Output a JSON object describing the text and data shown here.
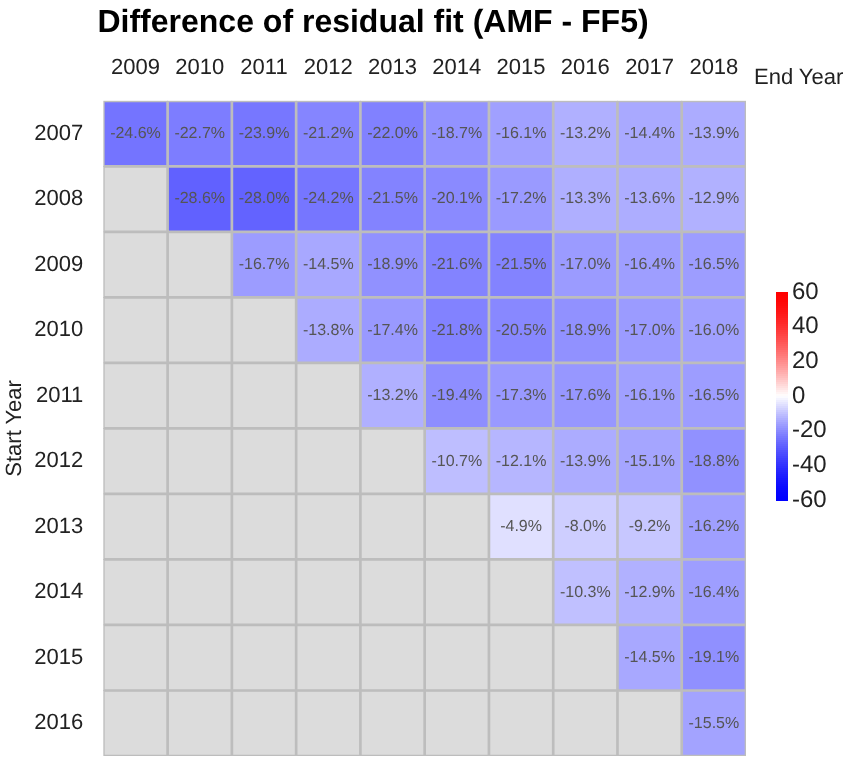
{
  "chart_data": {
    "type": "heatmap",
    "title": "Difference of residual fit (AMF - FF5)",
    "xlabel": "End Year",
    "ylabel": "Start Year",
    "categories": [
      "2009",
      "2010",
      "2011",
      "2012",
      "2013",
      "2014",
      "2015",
      "2016",
      "2017",
      "2018"
    ],
    "y_categories": [
      "2007",
      "2008",
      "2009",
      "2010",
      "2011",
      "2012",
      "2013",
      "2014",
      "2015",
      "2016"
    ],
    "cells": [
      [
        -24.6,
        -22.7,
        -23.9,
        -21.2,
        -22.0,
        -18.7,
        -16.1,
        -13.2,
        -14.4,
        -13.9
      ],
      [
        null,
        -28.6,
        -28.0,
        -24.2,
        -21.5,
        -20.1,
        -17.2,
        -13.3,
        -13.6,
        -12.9
      ],
      [
        null,
        null,
        -16.7,
        -14.5,
        -18.9,
        -21.6,
        -21.5,
        -17.0,
        -16.4,
        -16.5
      ],
      [
        null,
        null,
        null,
        -13.8,
        -17.4,
        -21.8,
        -20.5,
        -18.9,
        -17.0,
        -16.0
      ],
      [
        null,
        null,
        null,
        null,
        -13.2,
        -19.4,
        -17.3,
        -17.6,
        -16.1,
        -16.5
      ],
      [
        null,
        null,
        null,
        null,
        null,
        -10.7,
        -12.1,
        -13.9,
        -15.1,
        -18.8
      ],
      [
        null,
        null,
        null,
        null,
        null,
        null,
        -4.9,
        -8.0,
        -9.2,
        -16.2
      ],
      [
        null,
        null,
        null,
        null,
        null,
        null,
        null,
        -10.3,
        -12.9,
        -16.4
      ],
      [
        null,
        null,
        null,
        null,
        null,
        null,
        null,
        null,
        -14.5,
        -19.1
      ],
      [
        null,
        null,
        null,
        null,
        null,
        null,
        null,
        null,
        null,
        -15.5
      ]
    ],
    "cell_labels": [
      [
        "-24.6%",
        "-22.7%",
        "-23.9%",
        "-21.2%",
        "-22.0%",
        "-18.7%",
        "-16.1%",
        "-13.2%",
        "-14.4%",
        "-13.9%"
      ],
      [
        null,
        "-28.6%",
        "-28.0%",
        "-24.2%",
        "-21.5%",
        "-20.1%",
        "-17.2%",
        "-13.3%",
        "-13.6%",
        "-12.9%"
      ],
      [
        null,
        null,
        "-16.7%",
        "-14.5%",
        "-18.9%",
        "-21.6%",
        "-21.5%",
        "-17.0%",
        "-16.4%",
        "-16.5%"
      ],
      [
        null,
        null,
        null,
        "-13.8%",
        "-17.4%",
        "-21.8%",
        "-20.5%",
        "-18.9%",
        "-17.0%",
        "-16.0%"
      ],
      [
        null,
        null,
        null,
        null,
        "-13.2%",
        "-19.4%",
        "-17.3%",
        "-17.6%",
        "-16.1%",
        "-16.5%"
      ],
      [
        null,
        null,
        null,
        null,
        null,
        "-10.7%",
        "-12.1%",
        "-13.9%",
        "-15.1%",
        "-18.8%"
      ],
      [
        null,
        null,
        null,
        null,
        null,
        null,
        "-4.9%",
        "-8.0%",
        "-9.2%",
        "-16.2%"
      ],
      [
        null,
        null,
        null,
        null,
        null,
        null,
        null,
        "-10.3%",
        "-12.9%",
        "-16.4%"
      ],
      [
        null,
        null,
        null,
        null,
        null,
        null,
        null,
        null,
        "-14.5%",
        "-19.1%"
      ],
      [
        null,
        null,
        null,
        null,
        null,
        null,
        null,
        null,
        null,
        "-15.5%"
      ]
    ],
    "clim": [
      -60,
      60
    ],
    "cticks": [
      -60,
      -40,
      -20,
      0,
      20,
      40,
      60
    ]
  }
}
